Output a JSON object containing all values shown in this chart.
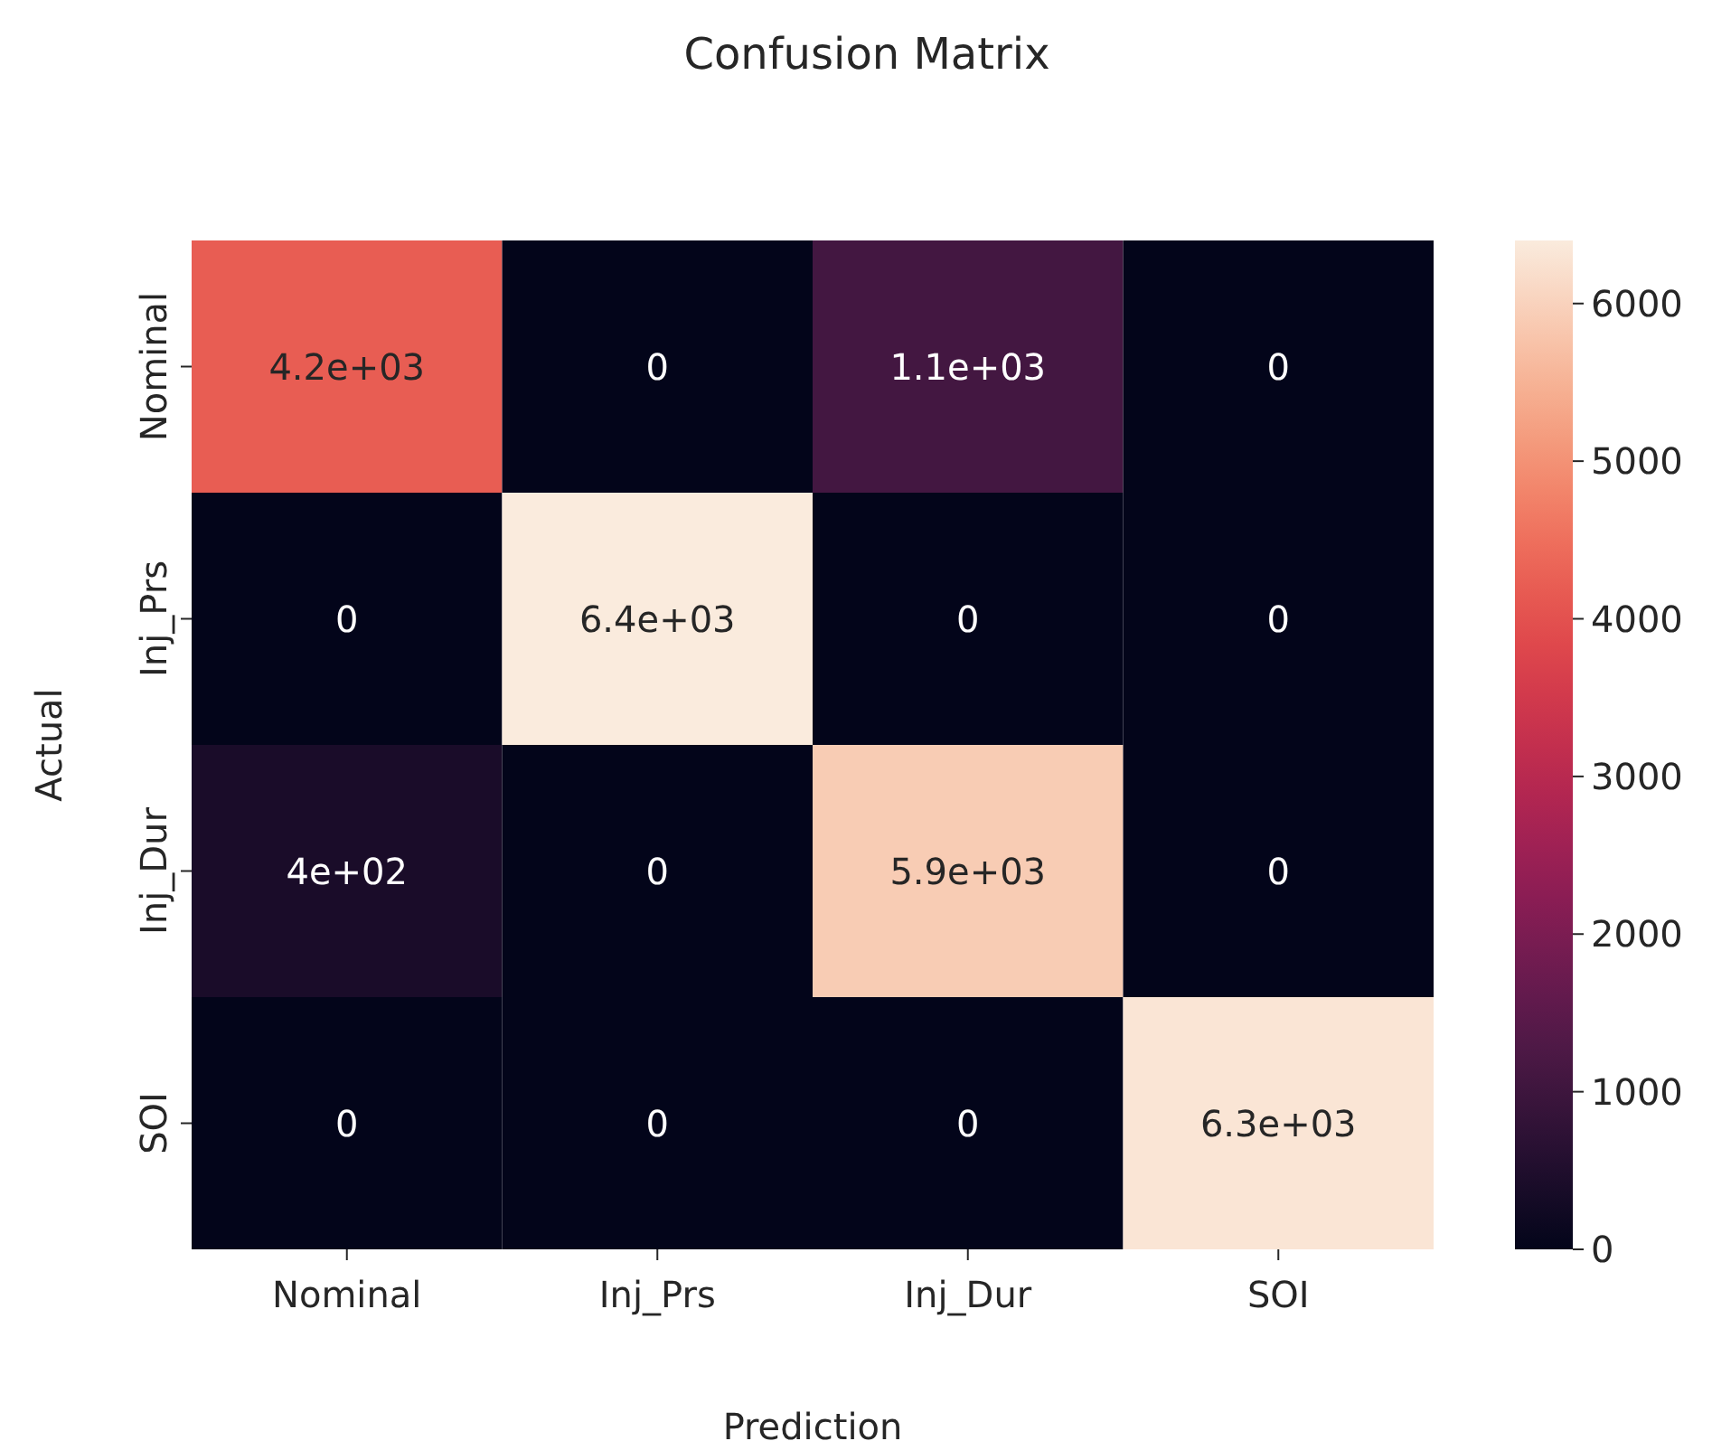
{
  "chart_data": {
    "type": "heatmap",
    "title": "Confusion Matrix",
    "xlabel": "Prediction",
    "ylabel": "Actual",
    "categories": [
      "Nominal",
      "Inj_Prs",
      "Inj_Dur",
      "SOI"
    ],
    "y_categories": [
      "Nominal",
      "Inj_Prs",
      "Inj_Dur",
      "SOI"
    ],
    "cells": [
      [
        4200,
        0,
        1100,
        0
      ],
      [
        0,
        6400,
        0,
        0
      ],
      [
        400,
        0,
        5900,
        0
      ],
      [
        0,
        0,
        0,
        6300
      ]
    ],
    "cell_labels": [
      [
        "4.2e+03",
        "0",
        "1.1e+03",
        "0"
      ],
      [
        "0",
        "6.4e+03",
        "0",
        "0"
      ],
      [
        "4e+02",
        "0",
        "5.9e+03",
        "0"
      ],
      [
        "0",
        "0",
        "0",
        "6.3e+03"
      ]
    ],
    "clim": [
      0,
      6400
    ],
    "cticks": [
      0,
      1000,
      2000,
      3000,
      4000,
      5000,
      6000
    ]
  }
}
